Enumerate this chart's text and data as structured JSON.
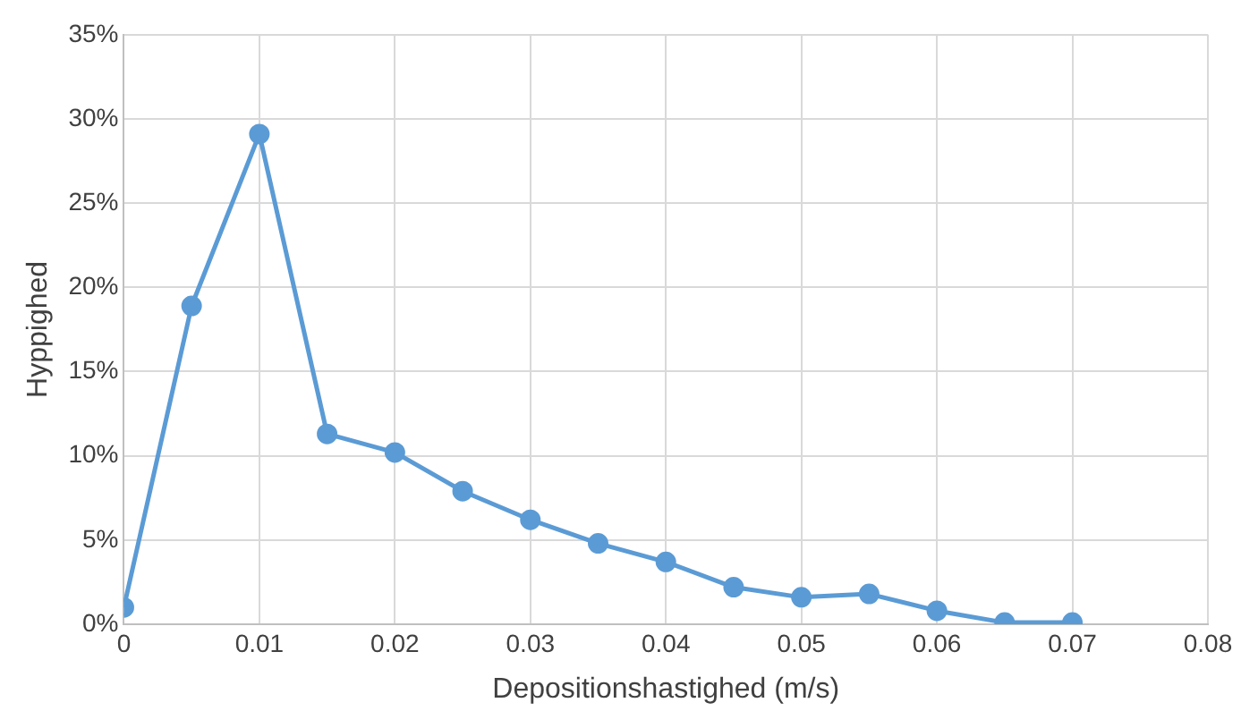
{
  "chart_data": {
    "type": "line",
    "xlabel": "Depositionshastighed (m/s)",
    "ylabel": "Hyppighed",
    "x": [
      0,
      0.005,
      0.01,
      0.015,
      0.02,
      0.025,
      0.03,
      0.035,
      0.04,
      0.045,
      0.05,
      0.055,
      0.06,
      0.065,
      0.07
    ],
    "series": [
      {
        "color": "#5b9bd5",
        "values": [
          1.0,
          18.9,
          29.1,
          11.3,
          10.2,
          7.9,
          6.2,
          4.8,
          3.7,
          2.2,
          1.6,
          1.8,
          0.8,
          0.1,
          0.1
        ]
      }
    ],
    "xlim": [
      0,
      0.08
    ],
    "xticks": [
      0,
      0.01,
      0.02,
      0.03,
      0.04,
      0.05,
      0.06,
      0.07,
      0.08
    ],
    "ylim": [
      0,
      35
    ],
    "yticks": [
      {
        "value": 0,
        "label": "0%"
      },
      {
        "value": 5,
        "label": "5%"
      },
      {
        "value": 10,
        "label": "10%"
      },
      {
        "value": 15,
        "label": "15%"
      },
      {
        "value": 20,
        "label": "20%"
      },
      {
        "value": 25,
        "label": "25%"
      },
      {
        "value": 30,
        "label": "30%"
      },
      {
        "value": 35,
        "label": "35%"
      }
    ],
    "grid": true,
    "legend": false,
    "marker": "circle",
    "line_style": "solid"
  }
}
